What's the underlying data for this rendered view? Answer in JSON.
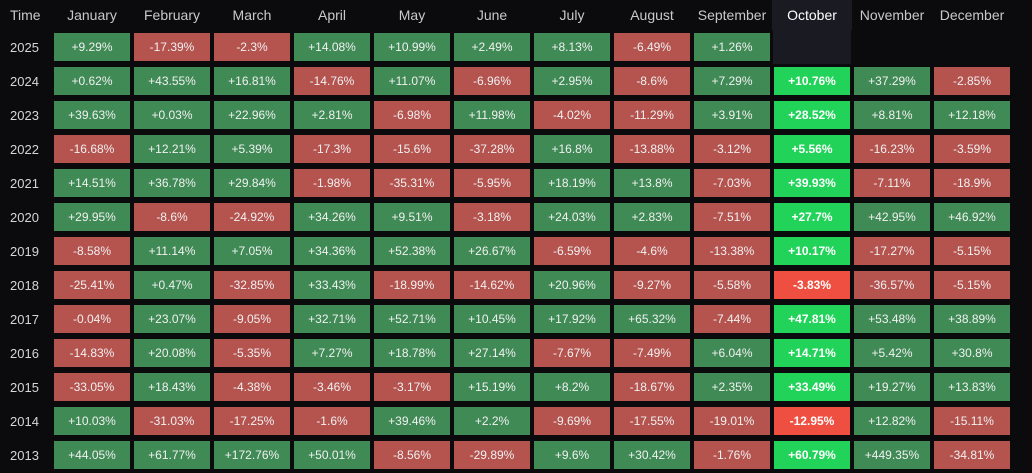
{
  "header": {
    "time_label": "Time",
    "months": [
      "January",
      "February",
      "March",
      "April",
      "May",
      "June",
      "July",
      "August",
      "September",
      "October",
      "November",
      "December"
    ],
    "highlight_month_index": 9
  },
  "colors": {
    "positive": "#3f8a55",
    "negative": "#b5534f",
    "highlight_positive": "#22d35a",
    "highlight_negative": "#ef4f40",
    "background": "#0b0b0d"
  },
  "rows": [
    {
      "year": "2025",
      "values": [
        "+9.29%",
        "-17.39%",
        "-2.3%",
        "+14.08%",
        "+10.99%",
        "+2.49%",
        "+8.13%",
        "-6.49%",
        "+1.26%",
        "",
        "",
        ""
      ]
    },
    {
      "year": "2024",
      "values": [
        "+0.62%",
        "+43.55%",
        "+16.81%",
        "-14.76%",
        "+11.07%",
        "-6.96%",
        "+2.95%",
        "-8.6%",
        "+7.29%",
        "+10.76%",
        "+37.29%",
        "-2.85%"
      ]
    },
    {
      "year": "2023",
      "values": [
        "+39.63%",
        "+0.03%",
        "+22.96%",
        "+2.81%",
        "-6.98%",
        "+11.98%",
        "-4.02%",
        "-11.29%",
        "+3.91%",
        "+28.52%",
        "+8.81%",
        "+12.18%"
      ]
    },
    {
      "year": "2022",
      "values": [
        "-16.68%",
        "+12.21%",
        "+5.39%",
        "-17.3%",
        "-15.6%",
        "-37.28%",
        "+16.8%",
        "-13.88%",
        "-3.12%",
        "+5.56%",
        "-16.23%",
        "-3.59%"
      ]
    },
    {
      "year": "2021",
      "values": [
        "+14.51%",
        "+36.78%",
        "+29.84%",
        "-1.98%",
        "-35.31%",
        "-5.95%",
        "+18.19%",
        "+13.8%",
        "-7.03%",
        "+39.93%",
        "-7.11%",
        "-18.9%"
      ]
    },
    {
      "year": "2020",
      "values": [
        "+29.95%",
        "-8.6%",
        "-24.92%",
        "+34.26%",
        "+9.51%",
        "-3.18%",
        "+24.03%",
        "+2.83%",
        "-7.51%",
        "+27.7%",
        "+42.95%",
        "+46.92%"
      ]
    },
    {
      "year": "2019",
      "values": [
        "-8.58%",
        "+11.14%",
        "+7.05%",
        "+34.36%",
        "+52.38%",
        "+26.67%",
        "-6.59%",
        "-4.6%",
        "-13.38%",
        "+10.17%",
        "-17.27%",
        "-5.15%"
      ]
    },
    {
      "year": "2018",
      "values": [
        "-25.41%",
        "+0.47%",
        "-32.85%",
        "+33.43%",
        "-18.99%",
        "-14.62%",
        "+20.96%",
        "-9.27%",
        "-5.58%",
        "-3.83%",
        "-36.57%",
        "-5.15%"
      ]
    },
    {
      "year": "2017",
      "values": [
        "-0.04%",
        "+23.07%",
        "-9.05%",
        "+32.71%",
        "+52.71%",
        "+10.45%",
        "+17.92%",
        "+65.32%",
        "-7.44%",
        "+47.81%",
        "+53.48%",
        "+38.89%"
      ]
    },
    {
      "year": "2016",
      "values": [
        "-14.83%",
        "+20.08%",
        "-5.35%",
        "+7.27%",
        "+18.78%",
        "+27.14%",
        "-7.67%",
        "-7.49%",
        "+6.04%",
        "+14.71%",
        "+5.42%",
        "+30.8%"
      ]
    },
    {
      "year": "2015",
      "values": [
        "-33.05%",
        "+18.43%",
        "-4.38%",
        "-3.46%",
        "-3.17%",
        "+15.19%",
        "+8.2%",
        "-18.67%",
        "+2.35%",
        "+33.49%",
        "+19.27%",
        "+13.83%"
      ]
    },
    {
      "year": "2014",
      "values": [
        "+10.03%",
        "-31.03%",
        "-17.25%",
        "-1.6%",
        "+39.46%",
        "+2.2%",
        "-9.69%",
        "-17.55%",
        "-19.01%",
        "-12.95%",
        "+12.82%",
        "-15.11%"
      ]
    },
    {
      "year": "2013",
      "values": [
        "+44.05%",
        "+61.77%",
        "+172.76%",
        "+50.01%",
        "-8.56%",
        "-29.89%",
        "+9.6%",
        "+30.42%",
        "-1.76%",
        "+60.79%",
        "+449.35%",
        "-34.81%"
      ]
    }
  ]
}
